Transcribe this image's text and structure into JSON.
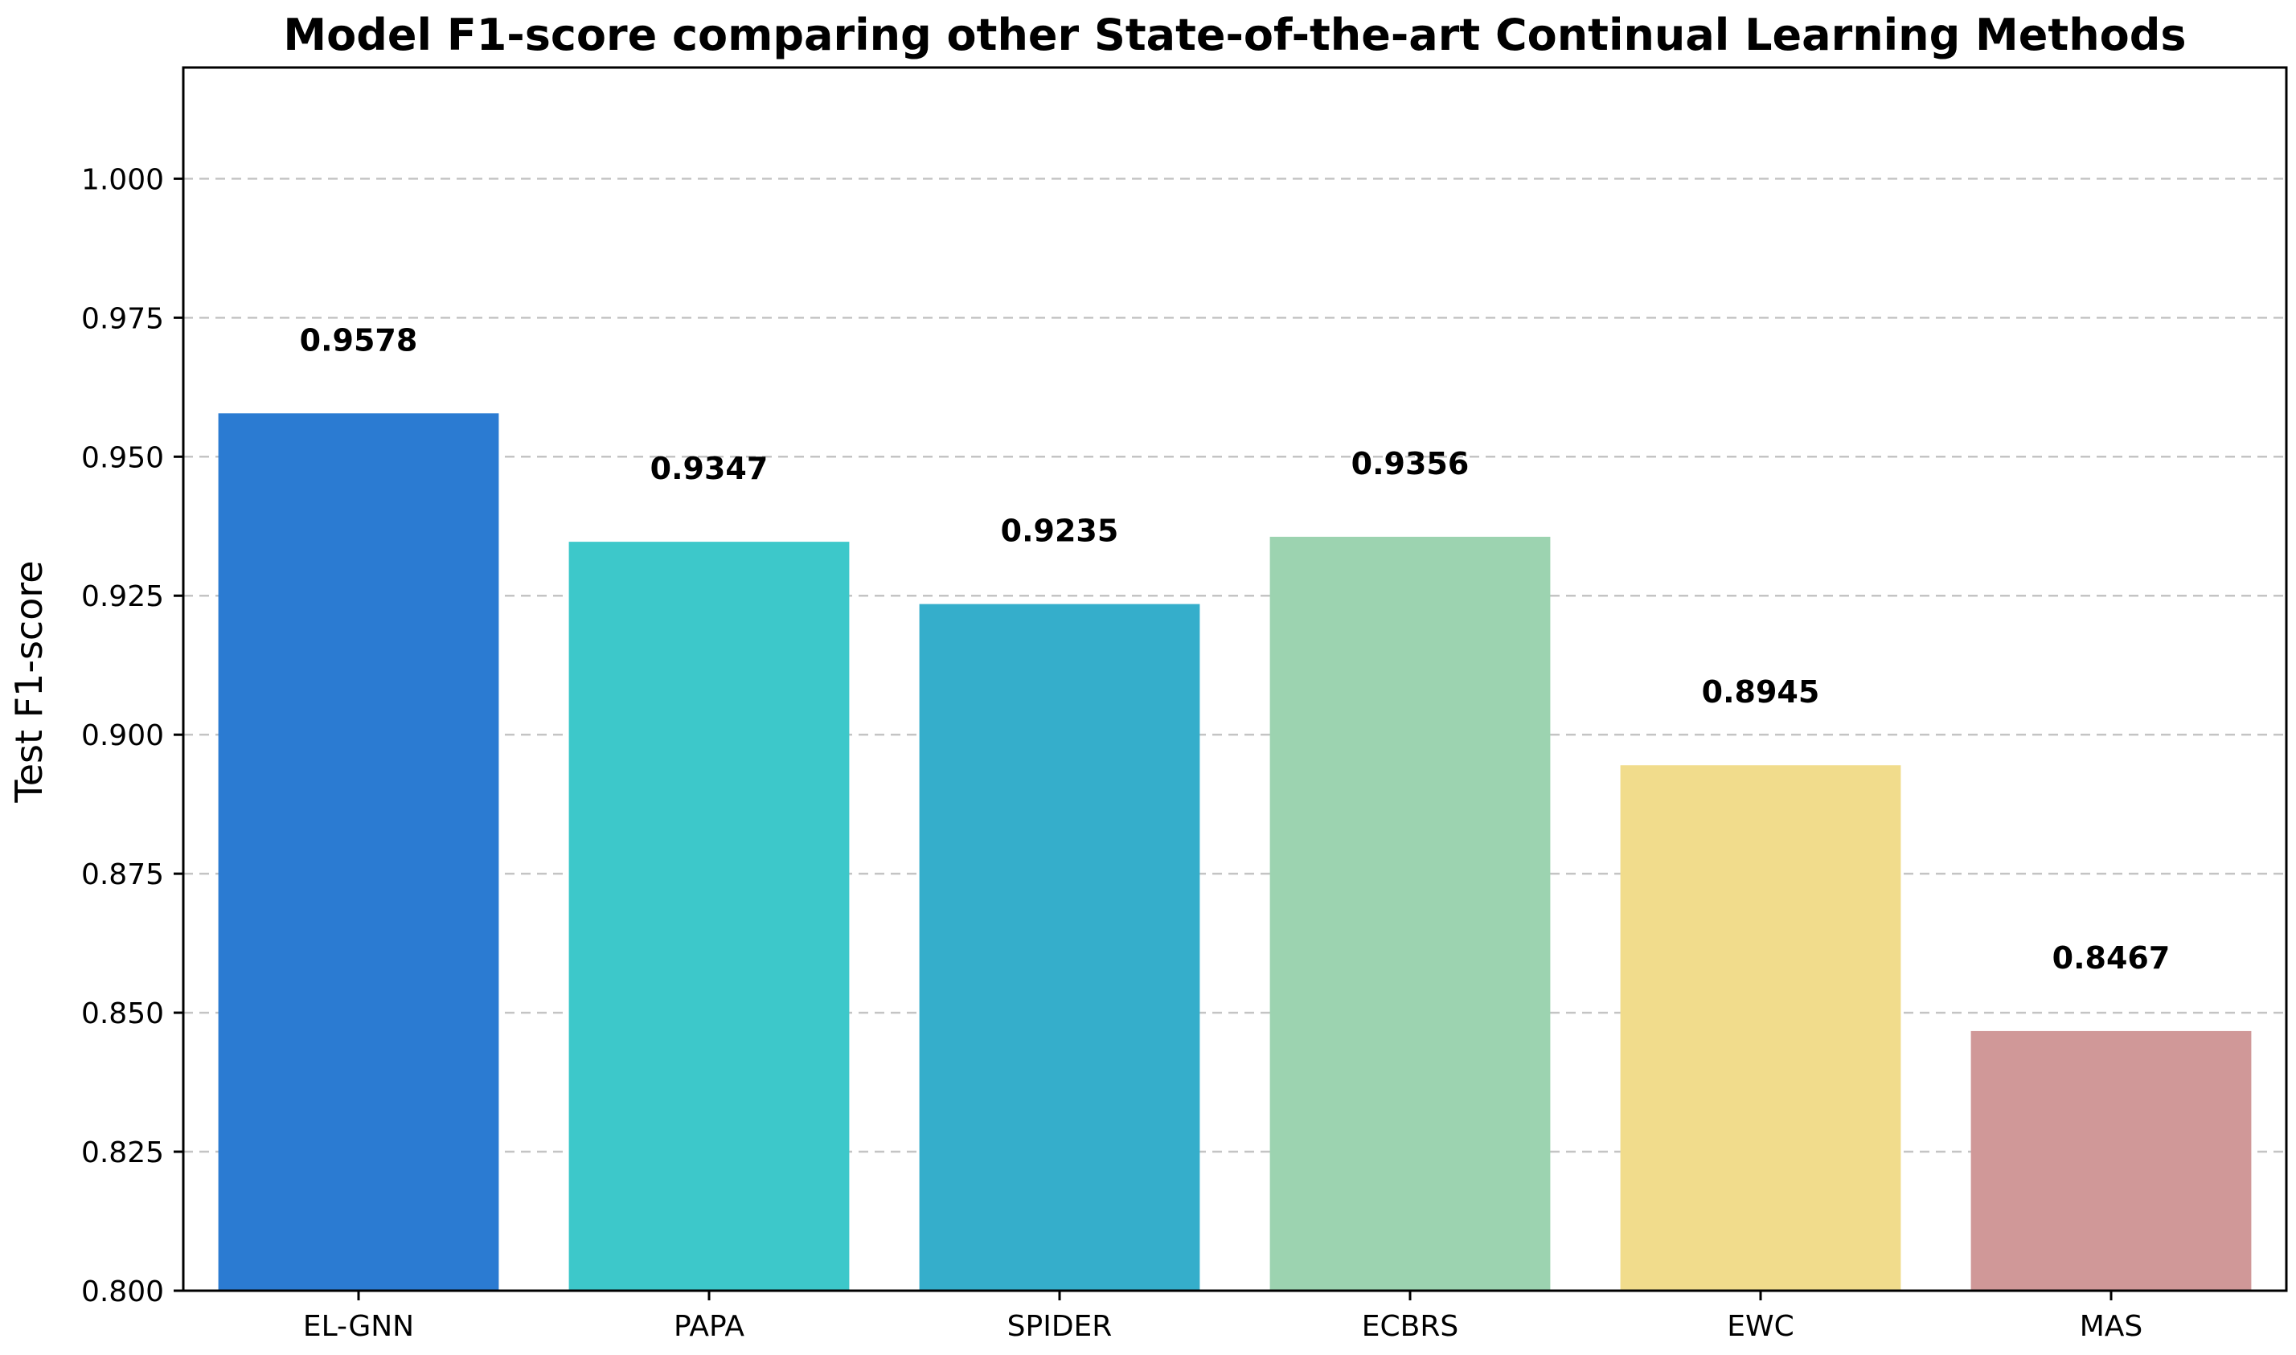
{
  "chart_data": {
    "type": "bar",
    "title": "Model F1-score comparing other State-of-the-art Continual Learning Methods",
    "xlabel": "",
    "ylabel": "Test F1-score",
    "categories": [
      "EL-GNN",
      "PAPA",
      "SPIDER",
      "ECBRS",
      "EWC",
      "MAS"
    ],
    "values": [
      0.9578,
      0.9347,
      0.9235,
      0.9356,
      0.8945,
      0.8467
    ],
    "value_labels": [
      "0.9578",
      "0.9347",
      "0.9235",
      "0.9356",
      "0.8945",
      "0.8467"
    ],
    "colors": [
      "#2b7bd2",
      "#3dc8ca",
      "#35aecb",
      "#9cd3b0",
      "#f1dc8c",
      "#d09898"
    ],
    "ylim": [
      0.8,
      1.02
    ],
    "yticks": [
      0.8,
      0.825,
      0.85,
      0.875,
      0.9,
      0.925,
      0.95,
      0.975,
      1.0
    ],
    "ytick_labels": [
      "0.800",
      "0.825",
      "0.850",
      "0.875",
      "0.900",
      "0.925",
      "0.950",
      "0.975",
      "1.000"
    ],
    "grid": "horizontal-dashed",
    "legend": "none"
  }
}
